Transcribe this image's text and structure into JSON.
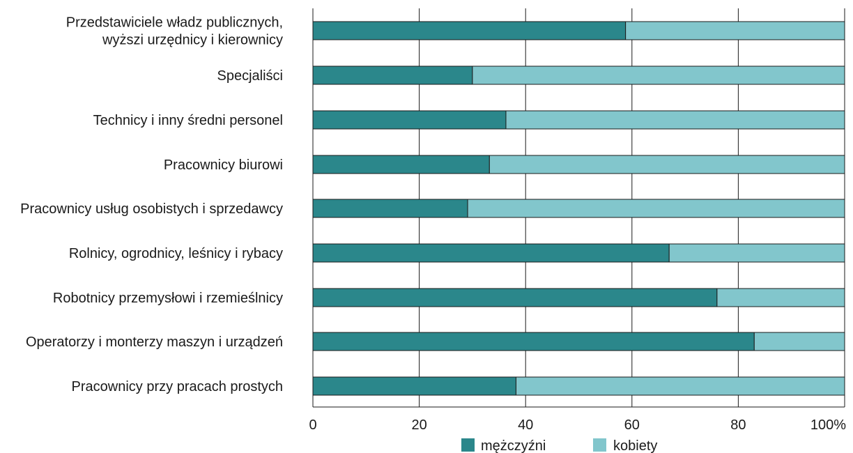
{
  "chart_data": {
    "type": "bar",
    "orientation": "horizontal",
    "stacked": true,
    "categories": [
      [
        "Przedstawiciele władz publicznych,",
        "wyższi urzędnicy i kierownicy"
      ],
      [
        "Specjaliści"
      ],
      [
        "Technicy i inny średni personel"
      ],
      [
        "Pracownicy biurowi"
      ],
      [
        "Pracownicy usług osobistych i sprzedawcy"
      ],
      [
        "Rolnicy, ogrodnicy, leśnicy i rybacy"
      ],
      [
        "Robotnicy przemysłowi i rzemieślnicy"
      ],
      [
        "Operatorzy i monterzy maszyn i urządzeń"
      ],
      [
        "Pracownicy przy pracach prostych"
      ]
    ],
    "series": [
      {
        "name": "mężczyźni",
        "color": "#2b878b",
        "values": [
          58.8,
          30.0,
          36.3,
          33.2,
          29.1,
          67.0,
          76.0,
          83.0,
          38.2
        ]
      },
      {
        "name": "kobiety",
        "color": "#82c6cc",
        "values": [
          41.2,
          70.0,
          63.7,
          66.8,
          70.9,
          33.0,
          24.0,
          17.0,
          61.8
        ]
      }
    ],
    "xlim": [
      0,
      100
    ],
    "xticks": [
      "0",
      "20",
      "40",
      "60",
      "80",
      "100%"
    ],
    "grid": true,
    "legend_position": "bottom",
    "title": "",
    "xlabel": "",
    "ylabel": ""
  }
}
